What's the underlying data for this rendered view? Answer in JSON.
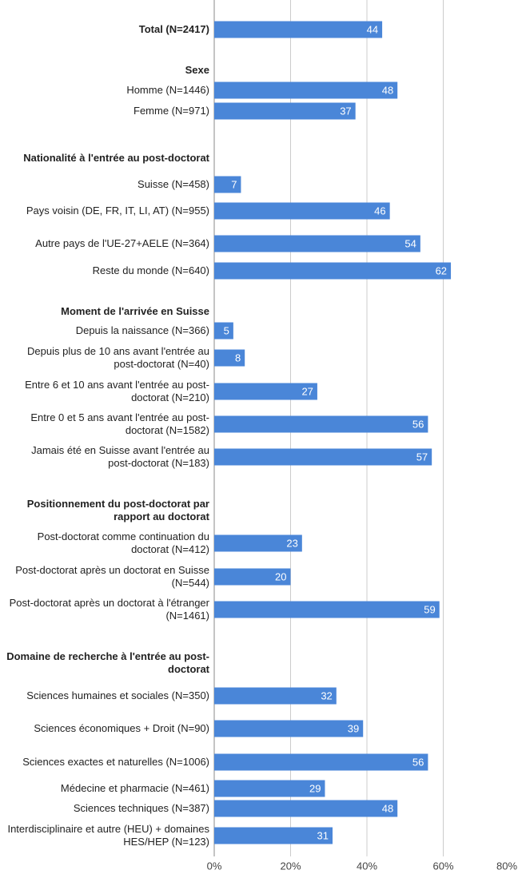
{
  "chart_data": {
    "type": "bar",
    "orientation": "horizontal",
    "categories": [
      "Total (N=2417)",
      "Sexe",
      "Homme (N=1446)",
      "Femme (N=971)",
      "Nationalité à l'entrée au post-doctorat",
      "Suisse (N=458)",
      "Pays voisin (DE, FR, IT, LI, AT) (N=955)",
      "Autre pays de l'UE-27+AELE (N=364)",
      "Reste du monde (N=640)",
      "Moment de l'arrivée en Suisse",
      "Depuis la naissance (N=366)",
      "Depuis plus de 10 ans avant l'entrée au post-doctorat (N=40)",
      "Entre 6 et 10 ans avant l'entrée au post-doctorat (N=210)",
      "Entre 0 et 5 ans avant l'entrée au post-doctorat (N=1582)",
      "Jamais été en Suisse avant l'entrée au post-doctorat (N=183)",
      "Positionnement du post-doctorat par rapport au doctorat",
      "Post-doctorat comme continuation du doctorat (N=412)",
      "Post-doctorat après un doctorat en Suisse (N=544)",
      "Post-doctorat après un doctorat à l'étranger (N=1461)",
      "Domaine de recherche à l'entrée au post-doctorat",
      "Sciences humaines et sociales (N=350)",
      "Sciences économiques + Droit (N=90)",
      "Sciences exactes et naturelles (N=1006)",
      "Médecine et pharmacie (N=461)",
      "Sciences techniques (N=387)",
      "Interdisciplinaire et autre (HEU) + domaines HES/HEP (N=123)"
    ],
    "values": [
      44,
      null,
      48,
      37,
      null,
      7,
      46,
      54,
      62,
      null,
      5,
      8,
      27,
      56,
      57,
      null,
      23,
      20,
      59,
      null,
      32,
      39,
      56,
      29,
      48,
      31
    ],
    "color": "#4a86d8",
    "xlim": [
      0,
      80
    ],
    "xticks": [
      {
        "value": 0,
        "label": "0%"
      },
      {
        "value": 20,
        "label": "20%"
      },
      {
        "value": 40,
        "label": "40%"
      },
      {
        "value": 60,
        "label": "60%"
      },
      {
        "value": 80,
        "label": "80%"
      }
    ],
    "grid": true
  }
}
